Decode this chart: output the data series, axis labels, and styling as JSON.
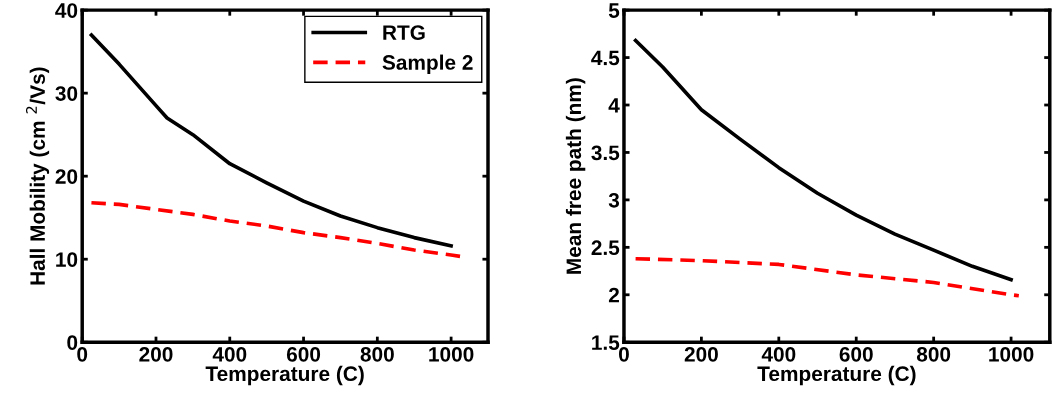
{
  "chart_data": [
    {
      "type": "line",
      "xlabel": "Temperature (C)",
      "ylabel": "Hall Mobility (cm $^{2}$/Vs)",
      "xlim": [
        0,
        1100
      ],
      "xticks": [
        0,
        200,
        400,
        600,
        800,
        1000
      ],
      "ylim": [
        0,
        40
      ],
      "yticks": [
        0,
        10,
        20,
        30,
        40
      ],
      "grid": false,
      "legend": "top right",
      "series": [
        {
          "name": "RTG",
          "color": "#000000",
          "line_style": "solid",
          "x": [
            25,
            100,
            200,
            230,
            300,
            400,
            500,
            600,
            700,
            800,
            900,
            1000
          ],
          "values": [
            37,
            33.5,
            28.5,
            27,
            25,
            21.5,
            19.2,
            17,
            15.2,
            13.8,
            12.6,
            11.6
          ]
        },
        {
          "name": "Sample 2",
          "color": "#ff0000",
          "line_style": "dashed",
          "x": [
            25,
            100,
            200,
            300,
            400,
            500,
            600,
            700,
            800,
            900,
            1000,
            1030
          ],
          "values": [
            16.8,
            16.6,
            16,
            15.4,
            14.6,
            14,
            13.2,
            12.6,
            11.9,
            11.1,
            10.5,
            10.3
          ]
        }
      ]
    },
    {
      "type": "line",
      "xlabel": "Temperature (C)",
      "ylabel": "Mean free path (nm)",
      "xlim": [
        0,
        1100
      ],
      "xticks": [
        0,
        200,
        400,
        600,
        800,
        1000
      ],
      "ylim": [
        1.5,
        5
      ],
      "yticks": [
        1.5,
        2,
        2.5,
        3,
        3.5,
        4,
        4.5,
        5
      ],
      "grid": false,
      "series": [
        {
          "color": "#000000",
          "line_style": "solid",
          "x": [
            30,
            100,
            200,
            300,
            400,
            500,
            600,
            700,
            800,
            900,
            1000
          ],
          "values": [
            4.68,
            4.4,
            3.95,
            3.64,
            3.34,
            3.07,
            2.84,
            2.64,
            2.47,
            2.3,
            2.16
          ]
        },
        {
          "color": "#ff0000",
          "line_style": "dashed",
          "x": [
            30,
            200,
            400,
            600,
            800,
            1000,
            1020
          ],
          "values": [
            2.38,
            2.36,
            2.32,
            2.21,
            2.13,
            2.0,
            1.99
          ]
        }
      ]
    }
  ]
}
